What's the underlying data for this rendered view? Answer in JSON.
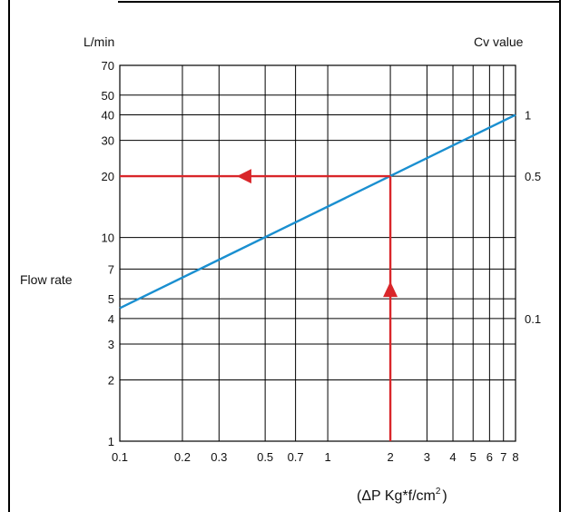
{
  "chart_data": {
    "type": "line",
    "y_scale": "log",
    "x_scale": "log",
    "xlabel": "(ΔP Kg*f/cm",
    "xlabel_sup": "2",
    "xlabel_close": ")",
    "ylabel_left_unit": "L/min",
    "ylabel_left": "Flow rate",
    "ylabel_right": "Cv value",
    "xlim": [
      0.1,
      8
    ],
    "ylim": [
      1,
      70
    ],
    "x_ticks": [
      0.1,
      0.2,
      0.3,
      0.5,
      0.7,
      1,
      2,
      3,
      4,
      5,
      6,
      7,
      8
    ],
    "x_tick_labels": [
      "0.1",
      "0.2",
      "0.3",
      "0.5",
      "0.7",
      "1",
      "2",
      "3",
      "4",
      "5",
      "6",
      "7",
      "8"
    ],
    "y_ticks": [
      1,
      2,
      3,
      4,
      5,
      7,
      10,
      20,
      30,
      40,
      50,
      70
    ],
    "y_tick_labels": [
      "1",
      "2",
      "3",
      "4",
      "5",
      "7",
      "10",
      "20",
      "30",
      "40",
      "50",
      "70"
    ],
    "right_ticks": [
      {
        "flow": 40,
        "label": "1"
      },
      {
        "flow": 20,
        "label": "0.5"
      },
      {
        "flow": 4,
        "label": "0.1"
      }
    ],
    "grid": true,
    "series": [
      {
        "color": "#1a8fd0",
        "x": [
          0.1,
          8
        ],
        "y": [
          4.5,
          40
        ]
      }
    ],
    "annotations": {
      "color": "#d9262a",
      "example_dp": 2,
      "example_flow": 20,
      "up_arrow_flow": 5.6,
      "left_arrow_dp": 0.4
    }
  }
}
